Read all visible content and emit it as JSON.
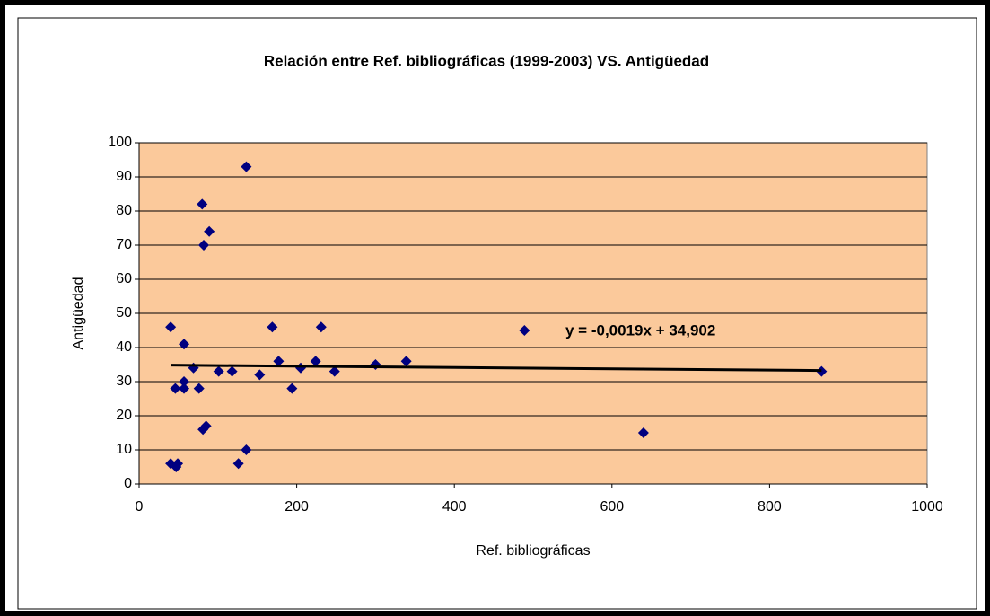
{
  "chart_data": {
    "type": "scatter",
    "title": "Relación entre Ref. bibliográficas (1999-2003) VS. Antigüedad",
    "x_label": "Ref. bibliográficas",
    "y_label": "Antigüedad",
    "series": [
      {
        "color": "#000080",
        "x": [
          40,
          40,
          47,
          49,
          46,
          57,
          57,
          57,
          69,
          76,
          80,
          82,
          89,
          81,
          85,
          101,
          118,
          126,
          136,
          136,
          153,
          169,
          177,
          194,
          205,
          224,
          231,
          248,
          300,
          339,
          489,
          640,
          866
        ],
        "values": [
          46,
          6,
          5,
          6,
          28,
          41,
          30,
          28,
          34,
          28,
          82,
          70,
          74,
          16,
          17,
          33,
          33,
          6,
          93,
          10,
          32,
          46,
          36,
          28,
          34,
          36,
          46,
          33,
          35,
          36,
          45,
          15,
          33
        ]
      }
    ],
    "trendline": {
      "slope": -0.0019,
      "intercept": 34.902,
      "label": "y = -0,0019x + 34,902",
      "color": "#000000"
    },
    "xlim": [
      0,
      1000
    ],
    "xticks": [
      0,
      200,
      400,
      600,
      800,
      1000
    ],
    "ylim": [
      0,
      100
    ],
    "yticks": [
      0,
      10,
      20,
      30,
      40,
      50,
      60,
      70,
      80,
      90,
      100
    ],
    "grid": true,
    "plot_background": "#fbc99b"
  }
}
